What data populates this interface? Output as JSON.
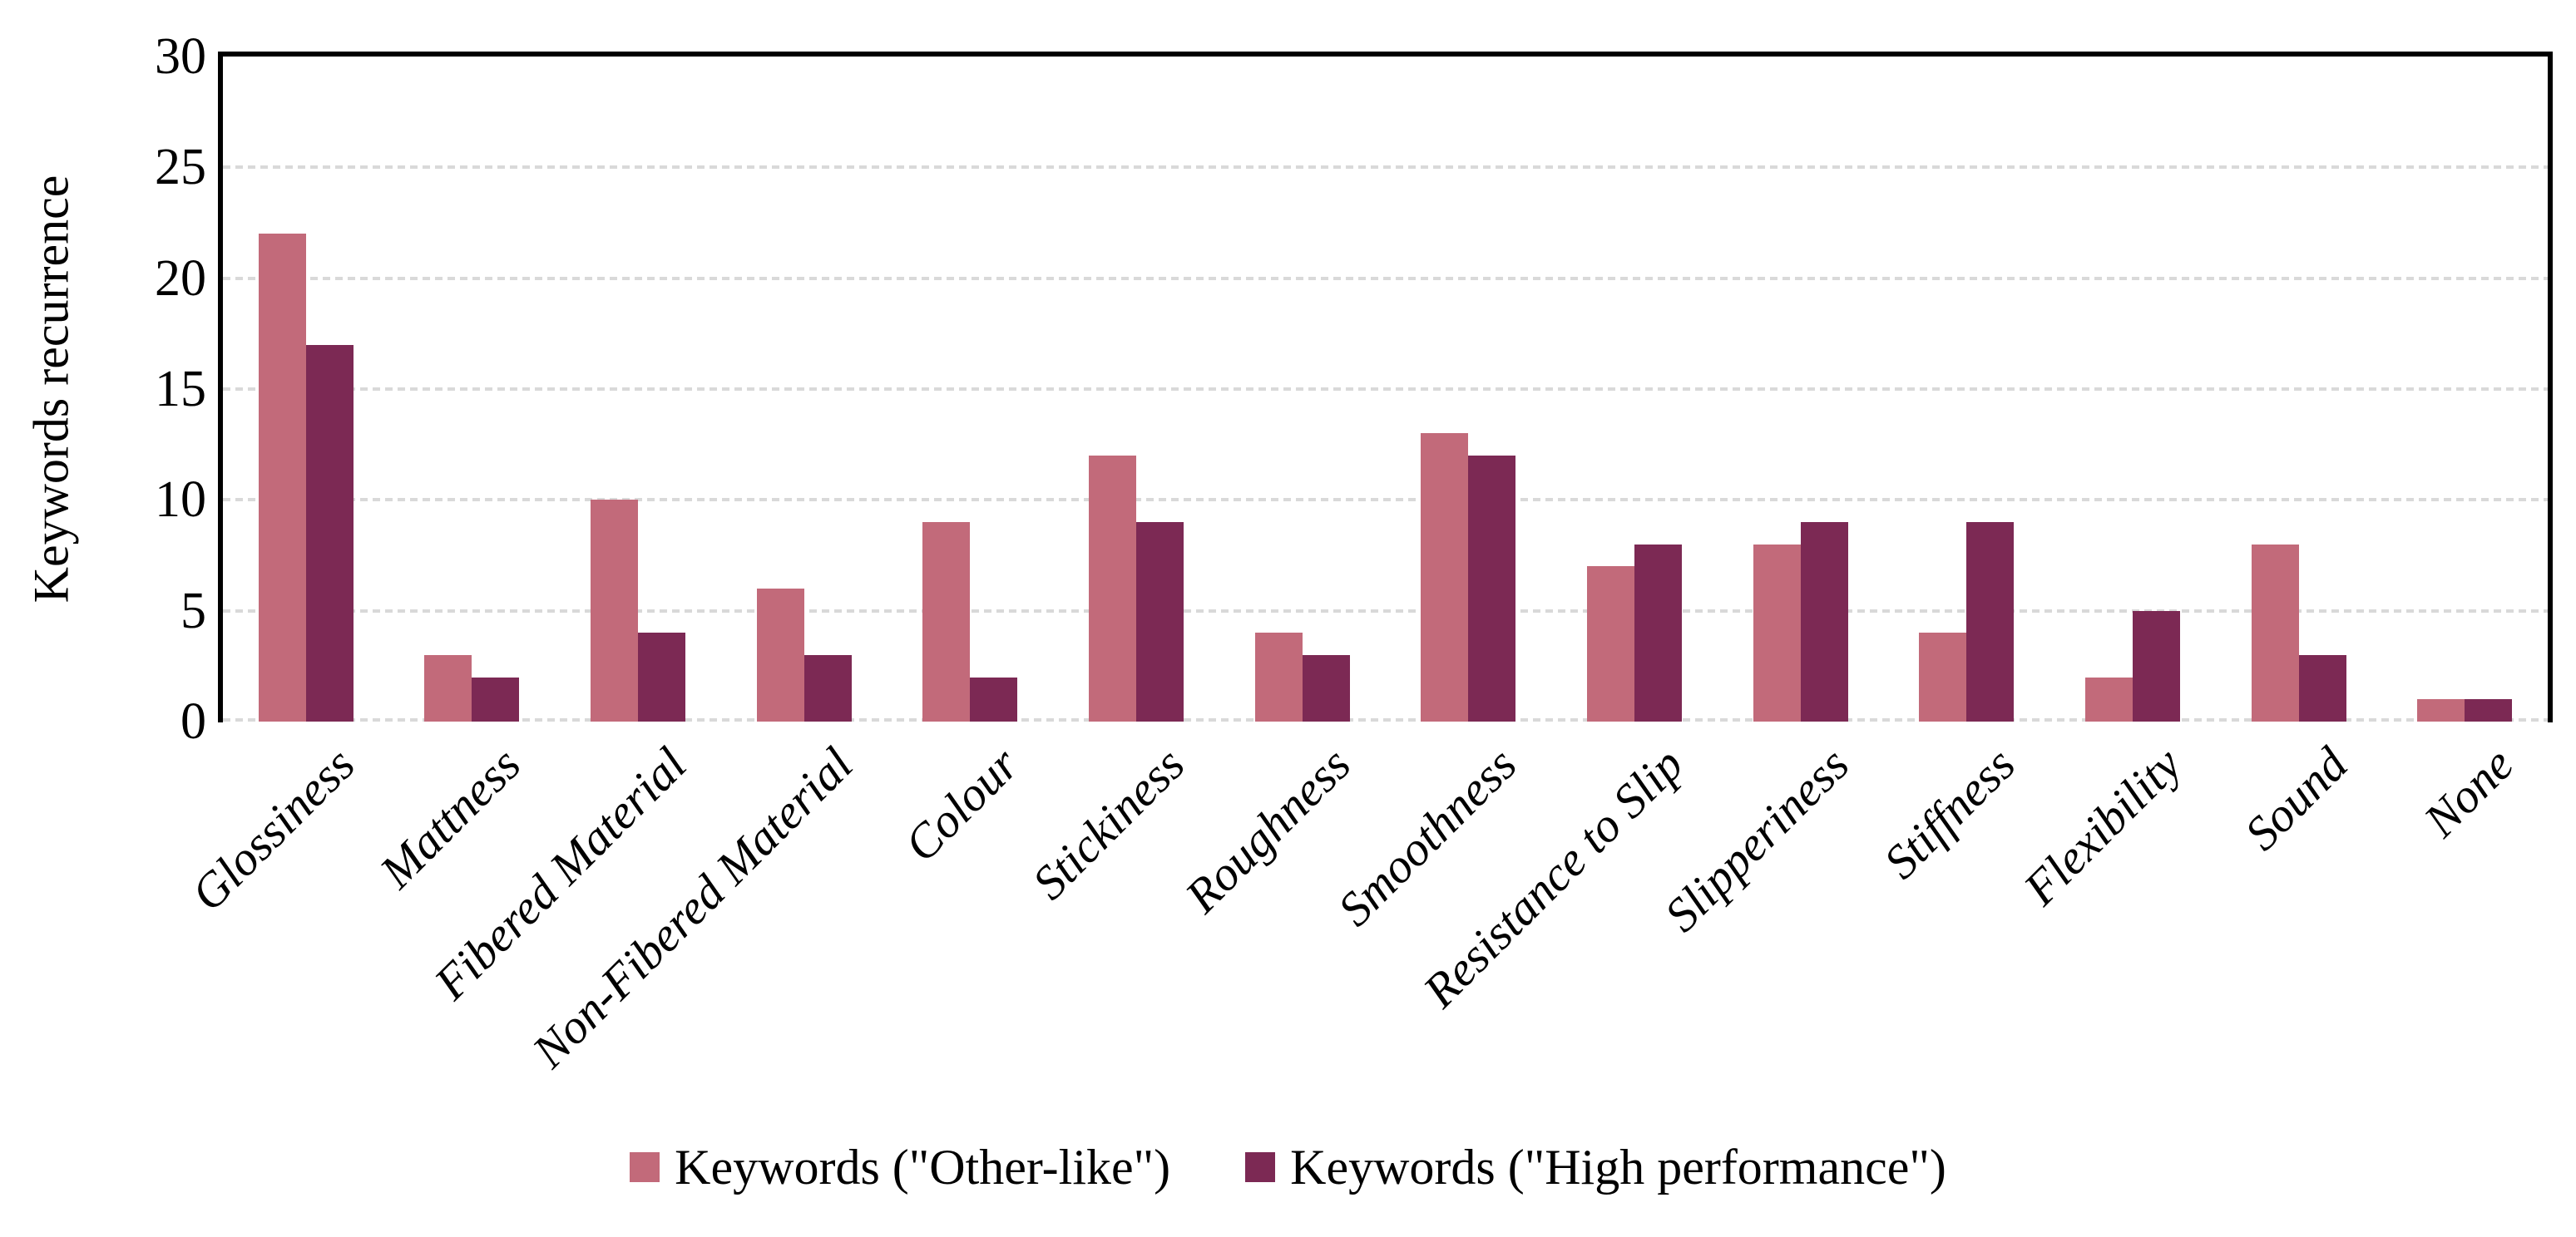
{
  "chart_data": {
    "type": "bar",
    "title": "",
    "ylabel": "Keywords recurrence",
    "xlabel": "",
    "ylim": [
      0,
      30
    ],
    "yticks": [
      0,
      5,
      10,
      15,
      20,
      25,
      30
    ],
    "grid": true,
    "gridline_style": "dotted",
    "legend_position": "bottom",
    "categories": [
      "Glossiness",
      "Mattness",
      "Fibered Material",
      "Non-Fibered Material",
      "Colour",
      "Stickiness",
      "Roughness",
      "Smoothness",
      "Resistance to Slip",
      "Slipperiness",
      "Stiffness",
      "Flexibility",
      "Sound",
      "None"
    ],
    "series": [
      {
        "name": "Keywords (\"Other-like\")",
        "color": "#c26a7a",
        "values": [
          22,
          3,
          10,
          6,
          9,
          12,
          4,
          13,
          7,
          8,
          4,
          2,
          8,
          1
        ]
      },
      {
        "name": "Keywords (\"High performance\")",
        "color": "#7c2954",
        "values": [
          17,
          2,
          4,
          3,
          2,
          9,
          3,
          12,
          8,
          9,
          9,
          5,
          3,
          1
        ]
      }
    ]
  },
  "colors": {
    "background": "#ffffff",
    "axis": "#000000",
    "gridline": "#d9d9d9",
    "text": "#000000"
  }
}
